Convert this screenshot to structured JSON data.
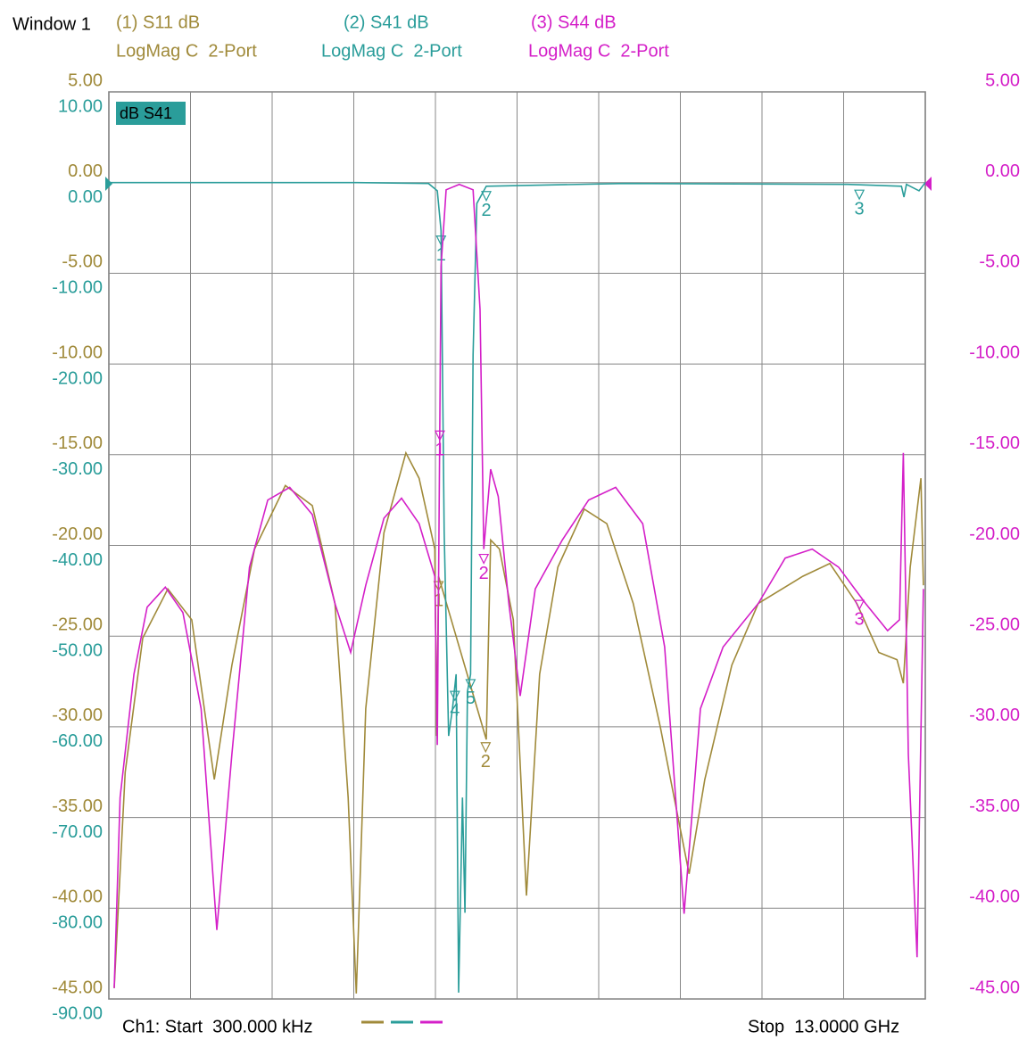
{
  "window_title": "Window 1",
  "chart_data": {
    "type": "line",
    "active_trace_label": "dB S41",
    "start_label": "Ch1: Start  300.000 kHz",
    "stop_label": "Stop  13.0000 GHz",
    "xlim": [
      0.0003,
      13
    ],
    "grid": true,
    "ylim": [
      -45,
      5
    ],
    "yticks": [
      {
        "value": 5,
        "label": "5.00"
      },
      {
        "value": 0,
        "label": "0.00"
      },
      {
        "value": -5,
        "label": "-5.00"
      },
      {
        "value": -10,
        "label": "-10.00"
      },
      {
        "value": -15,
        "label": "-15.00"
      },
      {
        "value": -20,
        "label": "-20.00"
      },
      {
        "value": -25,
        "label": "-25.00"
      },
      {
        "value": -30,
        "label": "-30.00"
      },
      {
        "value": -35,
        "label": "-35.00"
      },
      {
        "value": -40,
        "label": "-40.00"
      },
      {
        "value": -45,
        "label": "-45.00"
      }
    ],
    "y3lim": [
      -90,
      10
    ],
    "y3ticks": [
      {
        "value": 10,
        "label": "10.00"
      },
      {
        "value": 0,
        "label": "0.00"
      },
      {
        "value": -10,
        "label": "-10.00"
      },
      {
        "value": -20,
        "label": "-20.00"
      },
      {
        "value": -30,
        "label": "-30.00"
      },
      {
        "value": -40,
        "label": "-40.00"
      },
      {
        "value": -50,
        "label": "-50.00"
      },
      {
        "value": -60,
        "label": "-60.00"
      },
      {
        "value": -70,
        "label": "-70.00"
      },
      {
        "value": -80,
        "label": "-80.00"
      },
      {
        "value": -90,
        "label": "-90.00"
      }
    ],
    "y2lim": [
      -45,
      5
    ],
    "y2ticks": [
      {
        "value": 5,
        "label": "5.00"
      },
      {
        "value": 0,
        "label": "0.00"
      },
      {
        "value": -5,
        "label": "-5.00"
      },
      {
        "value": -10,
        "label": "-10.00"
      },
      {
        "value": -15,
        "label": "-15.00"
      },
      {
        "value": -20,
        "label": "-20.00"
      },
      {
        "value": -25,
        "label": "-25.00"
      },
      {
        "value": -30,
        "label": "-30.00"
      },
      {
        "value": -35,
        "label": "-35.00"
      },
      {
        "value": -40,
        "label": "-40.00"
      },
      {
        "value": -45,
        "label": "-45.00"
      }
    ],
    "series": [
      {
        "name": "(1) S11 dB",
        "format": "LogMag C  2-Port",
        "color": "#a08a3a",
        "axis": "y",
        "x": [
          0.085,
          0.26,
          0.54,
          0.94,
          1.32,
          1.68,
          1.96,
          2.32,
          2.81,
          3.24,
          3.6,
          3.81,
          3.94,
          4.09,
          4.38,
          4.73,
          4.94,
          5.19,
          5.22,
          5.25,
          6.01,
          6.08,
          6.22,
          6.44,
          6.65,
          6.86,
          7.15,
          7.57,
          7.93,
          8.35,
          8.78,
          9.24,
          9.49,
          9.92,
          10.34,
          11.05,
          11.48,
          11.91,
          12.26,
          12.55,
          12.65,
          12.76,
          12.93,
          12.97
        ],
        "values": [
          -44.4,
          -32.5,
          -25.1,
          -22.4,
          -24.1,
          -32.9,
          -26.6,
          -20.2,
          -16.7,
          -17.8,
          -23.2,
          -33.9,
          -44.7,
          -29.0,
          -19.3,
          -14.9,
          -16.3,
          -20.2,
          -30.5,
          -21.7,
          -30.7,
          -19.7,
          -20.2,
          -24.1,
          -39.3,
          -27.1,
          -21.2,
          -18.0,
          -18.8,
          -23.2,
          -30.0,
          -38.1,
          -32.9,
          -26.6,
          -23.2,
          -21.7,
          -21.0,
          -23.2,
          -25.9,
          -26.3,
          -27.6,
          -21.2,
          -16.3,
          -22.2
        ],
        "markers": [
          {
            "label": "1",
            "x": 5.25
          },
          {
            "label": "2",
            "x": 6.0
          }
        ]
      },
      {
        "name": "(2) S41 dB",
        "format": "LogMag C  2-Port",
        "color": "#2a9d9a",
        "axis": "y3",
        "x": [
          0.0003,
          3.95,
          5.09,
          5.23,
          5.29,
          5.34,
          5.41,
          5.47,
          5.53,
          5.57,
          5.63,
          5.67,
          5.71,
          5.76,
          5.8,
          5.86,
          6.01,
          8.21,
          11.76,
          12.62,
          12.66,
          12.7,
          12.9,
          13
        ],
        "values": [
          0,
          0,
          -0.1,
          -0.9,
          -5.3,
          -38.5,
          -61.0,
          -58.1,
          -54.2,
          -89.3,
          -67.8,
          -80.5,
          -56.1,
          -54.2,
          -19.0,
          -2.3,
          -0.4,
          -0.1,
          -0.2,
          -0.4,
          -1.6,
          -0.2,
          -0.9,
          0
        ],
        "markers": [
          {
            "label": "1",
            "x": 5.29
          },
          {
            "label": "2",
            "x": 6.01
          },
          {
            "label": "3",
            "x": 11.95
          },
          {
            "label": "4",
            "x": 5.51
          },
          {
            "label": "5",
            "x": 5.76
          }
        ]
      },
      {
        "name": "(3) S44 dB",
        "format": "LogMag C  2-Port",
        "color": "#d41fc8",
        "axis": "y2",
        "x": [
          0.085,
          0.18,
          0.4,
          0.61,
          0.9,
          1.18,
          1.47,
          1.72,
          1.96,
          2.24,
          2.53,
          2.88,
          3.24,
          3.6,
          3.85,
          4.09,
          4.38,
          4.66,
          4.94,
          5.19,
          5.23,
          5.29,
          5.37,
          5.58,
          5.8,
          5.91,
          5.97,
          6.08,
          6.2,
          6.37,
          6.55,
          6.79,
          7.22,
          7.64,
          8.07,
          8.5,
          8.85,
          9.16,
          9.42,
          9.78,
          10.34,
          10.77,
          11.2,
          11.62,
          12.05,
          12.4,
          12.59,
          12.65,
          12.73,
          12.87,
          12.97
        ],
        "values": [
          -44.4,
          -33.9,
          -27.1,
          -23.4,
          -22.3,
          -23.7,
          -29.0,
          -41.2,
          -31.5,
          -21.2,
          -17.5,
          -16.8,
          -18.3,
          -23.2,
          -25.9,
          -22.2,
          -18.5,
          -17.4,
          -18.8,
          -21.7,
          -31.0,
          -4.6,
          -0.4,
          -0.1,
          -0.4,
          -7.0,
          -20.2,
          -15.8,
          -17.3,
          -23.2,
          -28.3,
          -22.4,
          -19.7,
          -17.5,
          -16.8,
          -18.8,
          -25.6,
          -40.3,
          -29.0,
          -25.6,
          -23.2,
          -20.7,
          -20.2,
          -21.2,
          -23.2,
          -24.7,
          -24.1,
          -14.9,
          -31.5,
          -42.7,
          -22.4
        ],
        "markers": [
          {
            "label": "1",
            "x": 5.27
          },
          {
            "label": "2",
            "x": 5.97
          },
          {
            "label": "3",
            "x": 11.95
          }
        ]
      }
    ]
  }
}
